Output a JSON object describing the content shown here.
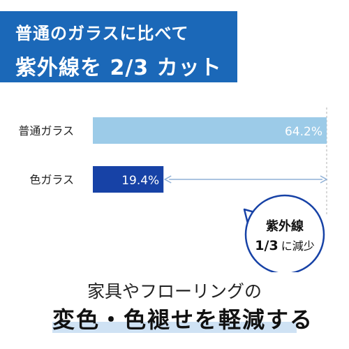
{
  "headline": {
    "line1": "普通のガラスに比べて",
    "line2": "紫外線を 2/3 カット"
  },
  "chart_data": {
    "type": "bar",
    "orientation": "horizontal",
    "categories": [
      "普通ガラス",
      "色ガラス"
    ],
    "values": [
      64.2,
      19.4
    ],
    "value_labels": [
      "64.2%",
      "19.4%"
    ],
    "xlim": [
      0,
      64.2
    ],
    "colors": [
      "#9ccbe8",
      "#1742a6"
    ],
    "annotation": {
      "line1": "紫外線",
      "line2_fraction": "1/3",
      "line2_text": "に減少"
    },
    "grid": false,
    "legend": "none"
  },
  "bottom": {
    "line1": "家具やフローリングの",
    "line2": "変色・色褪せを軽減する"
  },
  "colors": {
    "headline_bg": "#1b68b8",
    "highlight": "#cfe2f4",
    "arrow": "#8fb0d6",
    "badge_border": "#1742a6"
  }
}
